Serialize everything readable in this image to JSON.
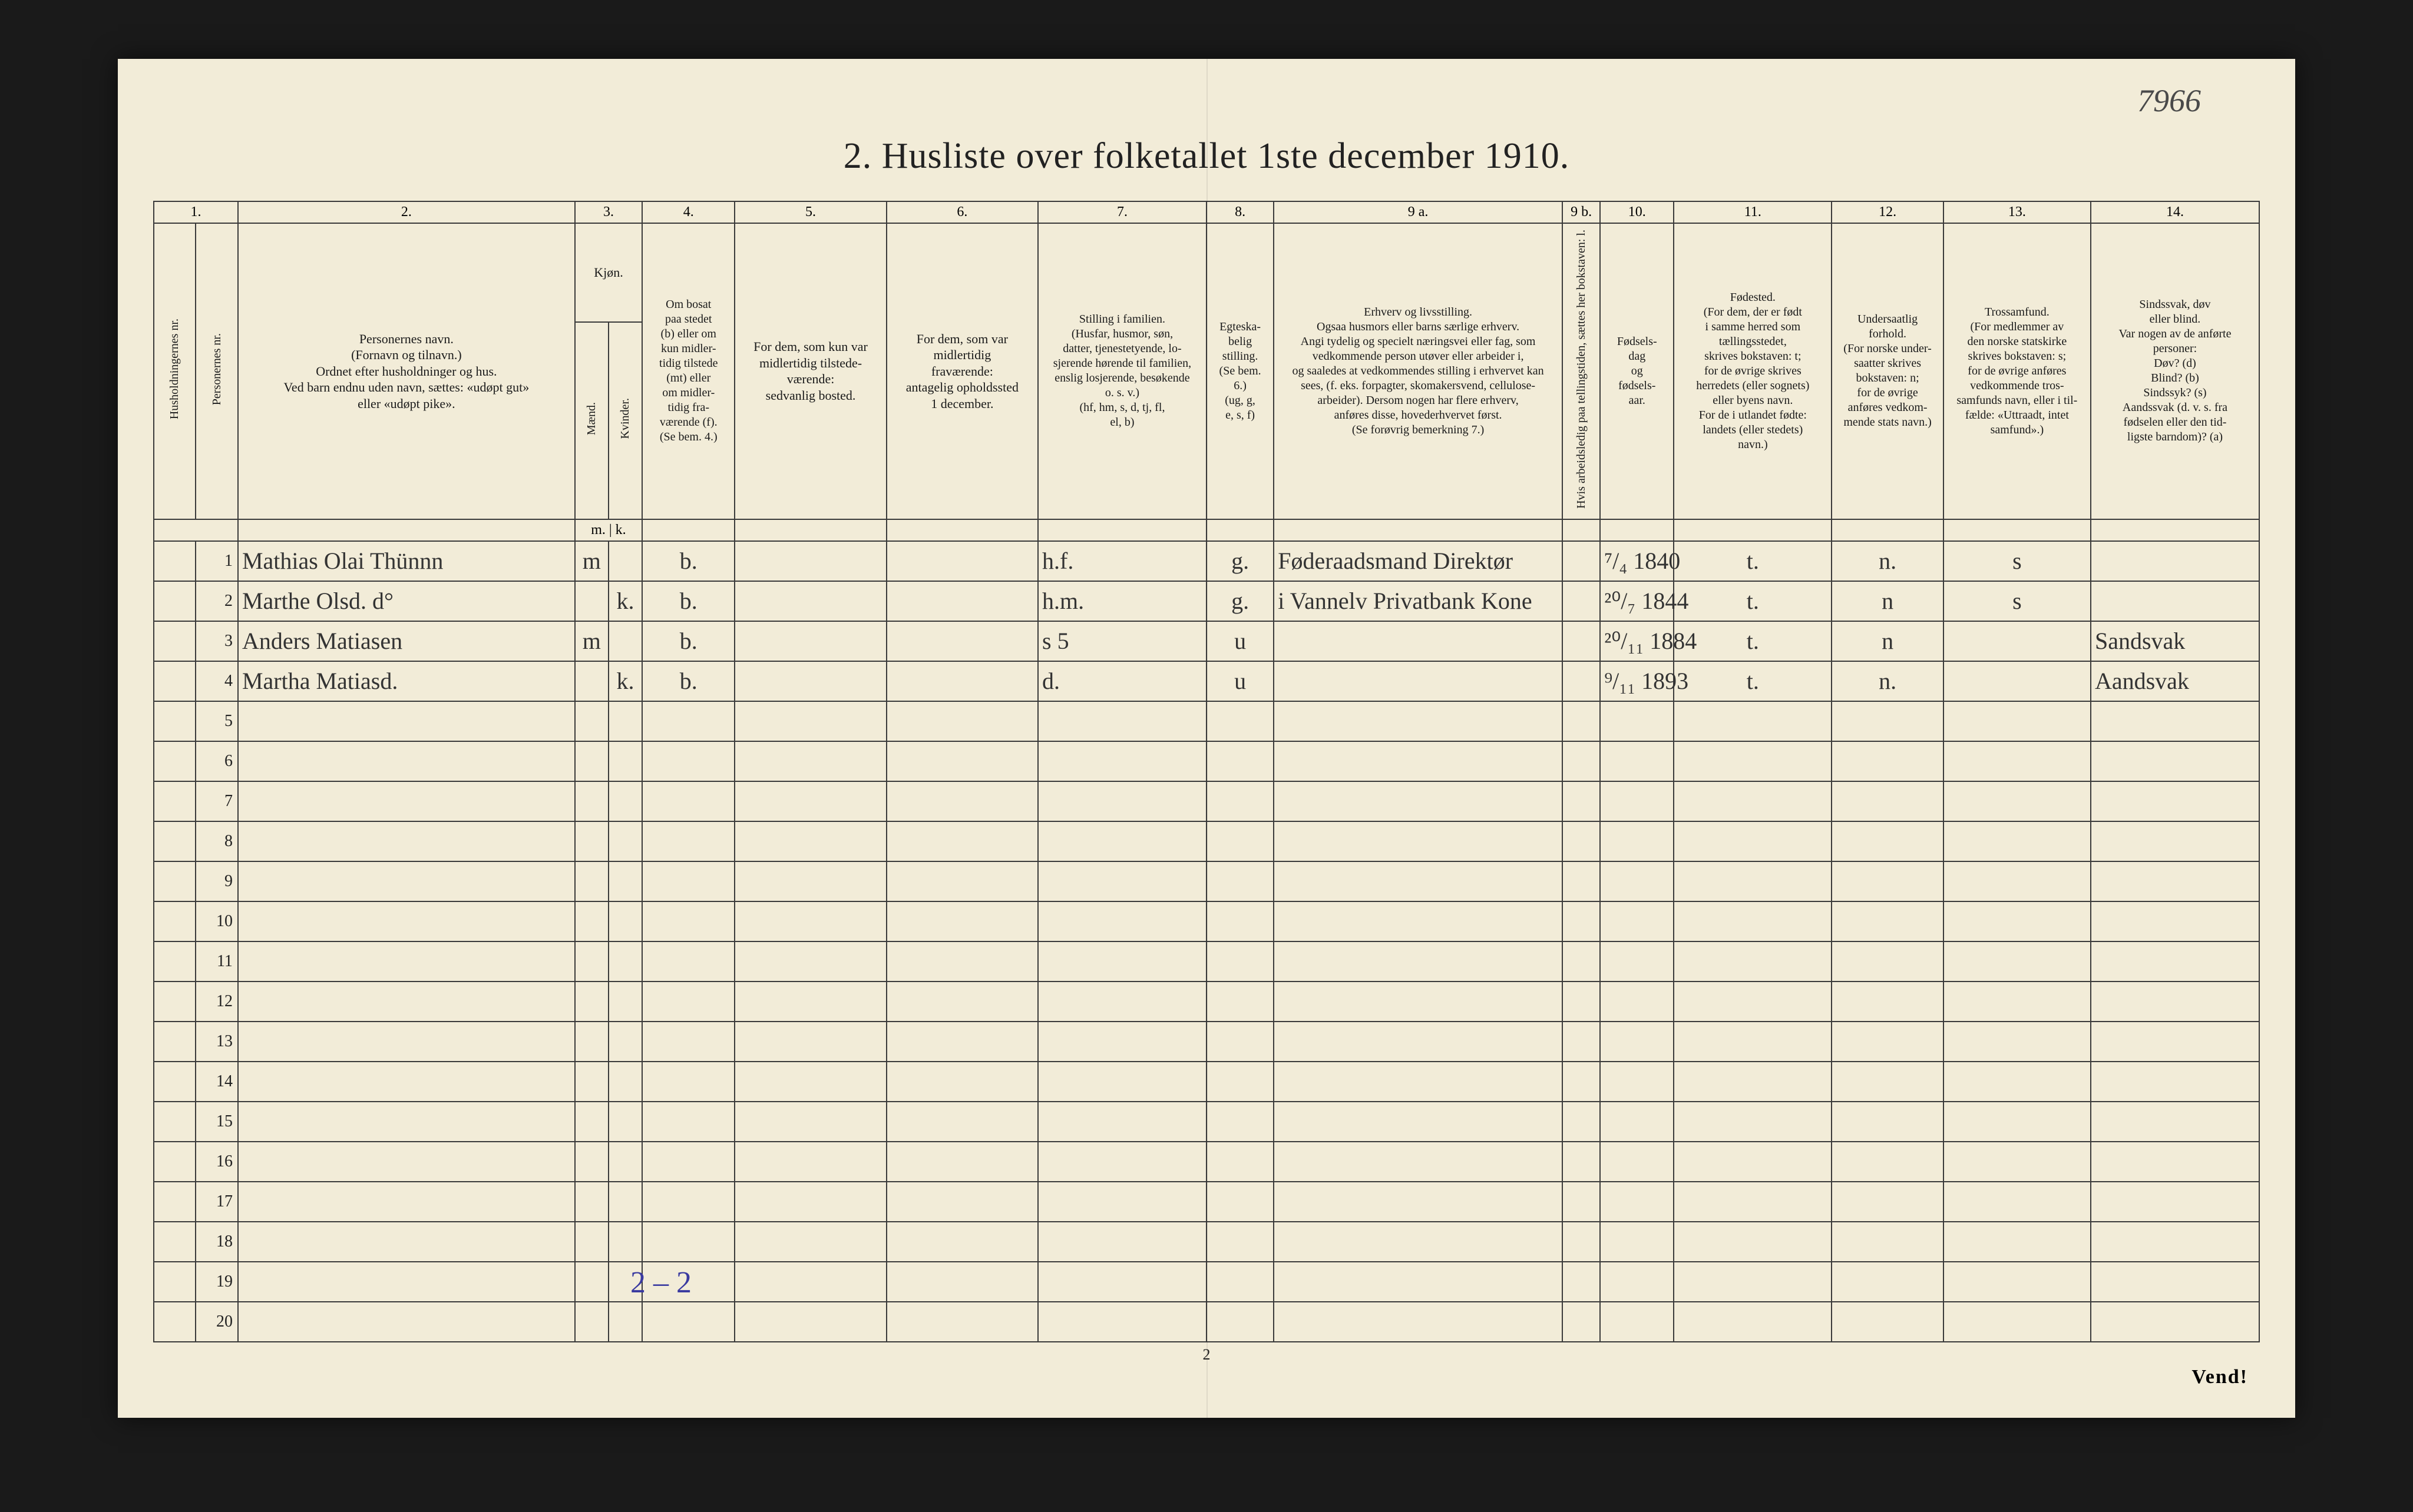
{
  "top_right_note": "7966",
  "title": "2.  Husliste over folketallet 1ste december 1910.",
  "columns": {
    "nums": [
      "1.",
      "2.",
      "3.",
      "4.",
      "5.",
      "6.",
      "7.",
      "8.",
      "9 a.",
      "9 b.",
      "10.",
      "11.",
      "12.",
      "13.",
      "14."
    ],
    "h1a": "Husholdningernes nr.",
    "h1b": "Personernes nr.",
    "h2": "Personernes navn.\n(Fornavn og tilnavn.)\nOrdnet efter husholdninger og hus.\nVed barn endnu uden navn, sættes: «udøpt gut»\neller «udøpt pike».",
    "h3": "Kjøn.",
    "h3a": "Mænd.",
    "h3b": "Kvinder.",
    "h4": "Om bosat\npaa stedet\n(b) eller om\nkun midler-\ntidig tilstede\n(mt) eller\nom midler-\ntidig fra-\nværende (f).\n(Se bem. 4.)",
    "h5": "For dem, som kun var\nmidlertidig tilstede-\nværende:\nsedvanlig bosted.",
    "h6": "For dem, som var\nmidlertidig\nfraværende:\nantagelig opholdssted\n1 december.",
    "h7": "Stilling i familien.\n(Husfar, husmor, søn,\ndatter, tjenestetyende, lo-\nsjerende hørende til familien,\nenslig losjerende, besøkende\no. s. v.)\n(hf, hm, s, d, tj, fl,\nel, b)",
    "h8": "Egteska-\nbelig\nstilling.\n(Se bem. 6.)\n(ug, g,\ne, s, f)",
    "h9a": "Erhverv og livsstilling.\nOgsaa husmors eller barns særlige erhverv.\nAngi tydelig og specielt næringsvei eller fag, som\nvedkommende person utøver eller arbeider i,\nog saaledes at vedkommendes stilling i erhvervet kan\nsees, (f. eks. forpagter, skomakersvend, cellulose-\narbeider). Dersom nogen har flere erhverv,\nanføres disse, hovederhvervet først.\n(Se forøvrig bemerkning 7.)",
    "h9b": "Hvis arbeidsledig\npaa tellingstiden, sættes\nher bokstaven: l.",
    "h10": "Fødsels-\ndag\nog\nfødsels-\naar.",
    "h11": "Fødested.\n(For dem, der er født\ni samme herred som\ntællingsstedet,\nskrives bokstaven: t;\nfor de øvrige skrives\nherredets (eller sognets)\neller byens navn.\nFor de i utlandet fødte:\nlandets (eller stedets)\nnavn.)",
    "h12": "Undersaatlig\nforhold.\n(For norske under-\nsaatter skrives\nbokstaven: n;\nfor de øvrige\nanføres vedkom-\nmende stats navn.)",
    "h13": "Trossamfund.\n(For medlemmer av\nden norske statskirke\nskrives bokstaven: s;\nfor de øvrige anføres\nvedkommende tros-\nsamfunds navn, eller i til-\nfælde: «Uttraadt, intet\nsamfund».)",
    "h14": "Sindssvak, døv\neller blind.\nVar nogen av de anførte\npersoner:\nDøv?     (d)\nBlind?   (b)\nSindssyk? (s)\nAandssvak (d. v. s. fra\nfødselen eller den tid-\nligste barndom)? (a)",
    "mk": "m. | k."
  },
  "rows": [
    {
      "n": "1",
      "name": "Mathias Olai Thünnn",
      "m": "m",
      "k": "",
      "bosat": "b.",
      "c5": "",
      "c6": "",
      "fam": "h.f.",
      "egt": "g.",
      "erhv": "Føderaadsmand Direktør",
      "led": "",
      "fdato": "⁷/₄ 1840",
      "fsted": "t.",
      "und": "n.",
      "tros": "s",
      "c14": ""
    },
    {
      "n": "2",
      "name": "Marthe   Olsd.        d°",
      "m": "",
      "k": "k.",
      "bosat": "b.",
      "c5": "",
      "c6": "",
      "fam": "h.m.",
      "egt": "g.",
      "erhv": "i Vannelv Privatbank   Kone",
      "led": "",
      "fdato": "²⁰/₇ 1844",
      "fsted": "t.",
      "und": "n",
      "tros": "s",
      "c14": ""
    },
    {
      "n": "3",
      "name": "Anders Matiasen",
      "m": "m",
      "k": "",
      "bosat": "b.",
      "c5": "",
      "c6": "",
      "fam": "s          5",
      "egt": "u",
      "erhv": "",
      "led": "",
      "fdato": "²⁰/₁₁ 1884",
      "fsted": "t.",
      "und": "n",
      "tros": "",
      "c14": "Sandsvak"
    },
    {
      "n": "4",
      "name": "Martha Matiasd.",
      "m": "",
      "k": "k.",
      "bosat": "b.",
      "c5": "",
      "c6": "",
      "fam": "d.",
      "egt": "u",
      "erhv": "",
      "led": "",
      "fdato": "⁹/₁₁ 1893",
      "fsted": "t.",
      "und": "n.",
      "tros": "",
      "c14": "Aandsvak"
    }
  ],
  "blank_row_count": 16,
  "bottom_note": "2 – 2",
  "page_num": "2",
  "vend": "Vend!"
}
